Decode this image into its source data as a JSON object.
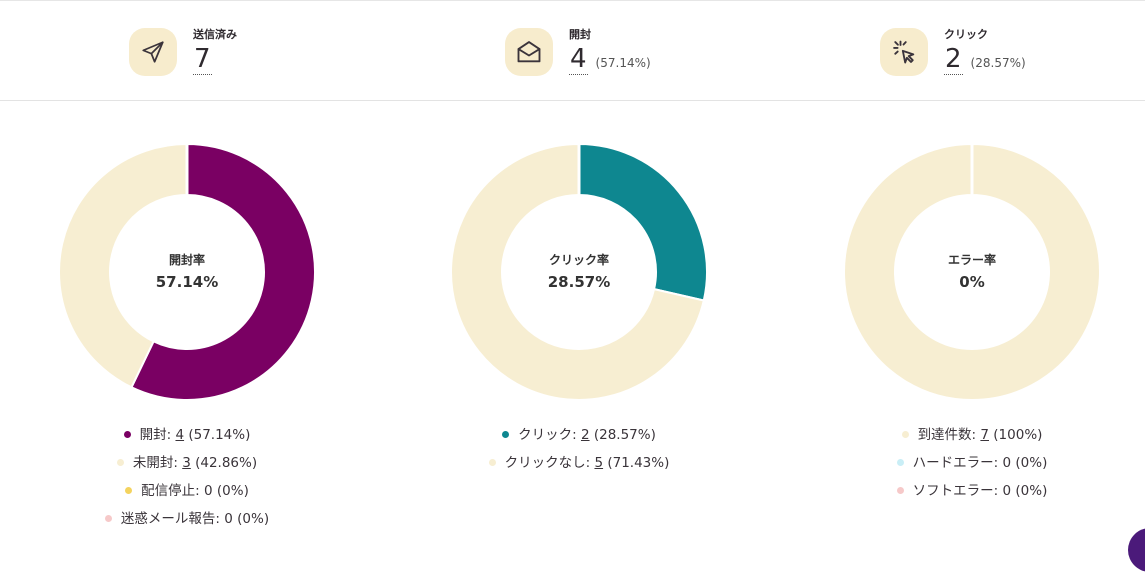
{
  "stats": [
    {
      "label": "送信済み",
      "value": "7",
      "pct": "",
      "icon": "paper-plane-icon"
    },
    {
      "label": "開封",
      "value": "4",
      "pct": "(57.14%)",
      "icon": "open-envelope-icon"
    },
    {
      "label": "クリック",
      "value": "2",
      "pct": "(28.57%)",
      "icon": "cursor-click-icon"
    }
  ],
  "colors": {
    "purple": "#7a0063",
    "teal": "#0e8790",
    "cream": "#f7eed2",
    "yellow": "#f4d35e",
    "pink": "#f6c9c9",
    "lightblue": "#c9eef6",
    "iconbg": "#f7eccd"
  },
  "chart_data": [
    {
      "type": "pie",
      "center_label": "開封率",
      "center_value": "57.14%",
      "slices": [
        {
          "name": "開封",
          "value": 4,
          "color": "#7a0063"
        },
        {
          "name": "未開封",
          "value": 3,
          "color": "#f7eed2"
        },
        {
          "name": "配信停止",
          "value": 0,
          "color": "#f4d35e"
        },
        {
          "name": "迷惑メール報告",
          "value": 0,
          "color": "#f6c9c9"
        }
      ],
      "legend": [
        {
          "pre": "開封: ",
          "num": "4",
          "post": " (57.14%)",
          "underline": true,
          "color": "#7a0063"
        },
        {
          "pre": "未開封: ",
          "num": "3",
          "post": " (42.86%)",
          "underline": true,
          "color": "#f7eed2"
        },
        {
          "pre": "配信停止: ",
          "num": "0",
          "post": " (0%)",
          "underline": false,
          "color": "#f4d35e"
        },
        {
          "pre": "迷惑メール報告: ",
          "num": "0",
          "post": " (0%)",
          "underline": false,
          "color": "#f6c9c9"
        }
      ]
    },
    {
      "type": "pie",
      "center_label": "クリック率",
      "center_value": "28.57%",
      "slices": [
        {
          "name": "クリック",
          "value": 2,
          "color": "#0e8790"
        },
        {
          "name": "クリックなし",
          "value": 5,
          "color": "#f7eed2"
        }
      ],
      "legend": [
        {
          "pre": "クリック: ",
          "num": "2",
          "post": " (28.57%)",
          "underline": true,
          "color": "#0e8790"
        },
        {
          "pre": "クリックなし: ",
          "num": "5",
          "post": " (71.43%)",
          "underline": true,
          "color": "#f7eed2"
        }
      ]
    },
    {
      "type": "pie",
      "center_label": "エラー率",
      "center_value": "0%",
      "slices": [
        {
          "name": "到達件数",
          "value": 7,
          "color": "#f7eed2"
        },
        {
          "name": "ハードエラー",
          "value": 0,
          "color": "#c9eef6"
        },
        {
          "name": "ソフトエラー",
          "value": 0,
          "color": "#f6c9c9"
        }
      ],
      "legend": [
        {
          "pre": "到達件数: ",
          "num": "7",
          "post": " (100%)",
          "underline": true,
          "color": "#f7eed2"
        },
        {
          "pre": "ハードエラー: ",
          "num": "0",
          "post": " (0%)",
          "underline": false,
          "color": "#c9eef6"
        },
        {
          "pre": "ソフトエラー: ",
          "num": "0",
          "post": " (0%)",
          "underline": false,
          "color": "#f6c9c9"
        }
      ]
    }
  ]
}
